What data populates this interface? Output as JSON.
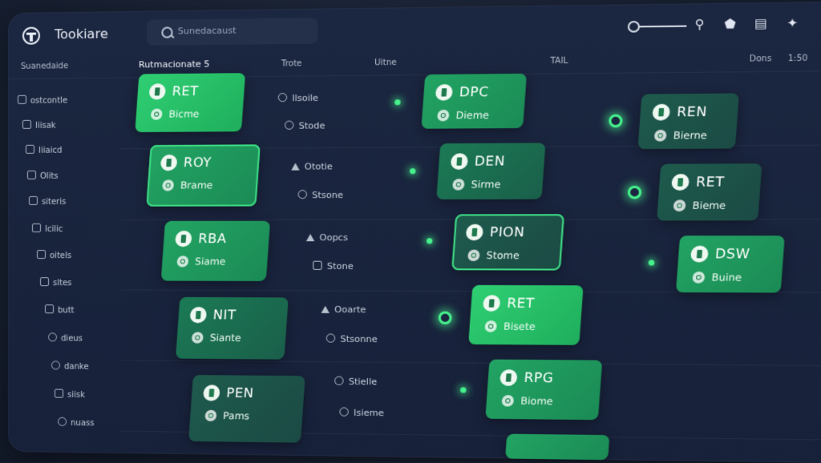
{
  "app": {
    "title": "Tookiare"
  },
  "search": {
    "placeholder": "Sunedacaust"
  },
  "columns": {
    "sidebar_header": "Suanedaide",
    "main_header": "Rutmacionate 5",
    "col2_header": "Trote",
    "col3_header": "Uitne",
    "col4_header": "TAIL",
    "col5_header": "Dons",
    "col6_header": "1:50"
  },
  "sidebar": {
    "items": [
      "ostcontle",
      "Iiisak",
      "Iiiaicd",
      "Olits",
      "siteris",
      "Icilic",
      "oitels",
      "sltes",
      "butt",
      "dieus",
      "danke",
      "siisk",
      "nuass"
    ]
  },
  "lists": {
    "col2": [
      "Ilsoile",
      "Stode",
      "Ototie",
      "Stsone",
      "Oopcs",
      "Stone",
      "Ooarte",
      "Stsonne",
      "Stielle",
      "Isieme"
    ]
  },
  "cards": [
    {
      "code": "RET",
      "status": "Bicme"
    },
    {
      "code": "ROY",
      "status": "Brame"
    },
    {
      "code": "RBA",
      "status": "Siame"
    },
    {
      "code": "NIT",
      "status": "Siante"
    },
    {
      "code": "PEN",
      "status": "Pams"
    },
    {
      "code": "DPC",
      "status": "Dieme"
    },
    {
      "code": "DEN",
      "status": "Sirme"
    },
    {
      "code": "PION",
      "status": "Stome"
    },
    {
      "code": "RET",
      "status": "Bisete"
    },
    {
      "code": "RPG",
      "status": "Biome"
    },
    {
      "code": "REN",
      "status": "Bierne"
    },
    {
      "code": "RET",
      "status": "Bieme"
    },
    {
      "code": "DSW",
      "status": "Buine"
    }
  ],
  "icons": {
    "logo": "logo-icon",
    "search": "search-icon",
    "location": "location-pin-icon",
    "bookmark": "bookmark-icon",
    "document": "document-icon",
    "puzzle": "puzzle-icon"
  },
  "colors": {
    "accent": "#2fcf73",
    "background": "#17213a",
    "status_dot": "#46f08c"
  }
}
